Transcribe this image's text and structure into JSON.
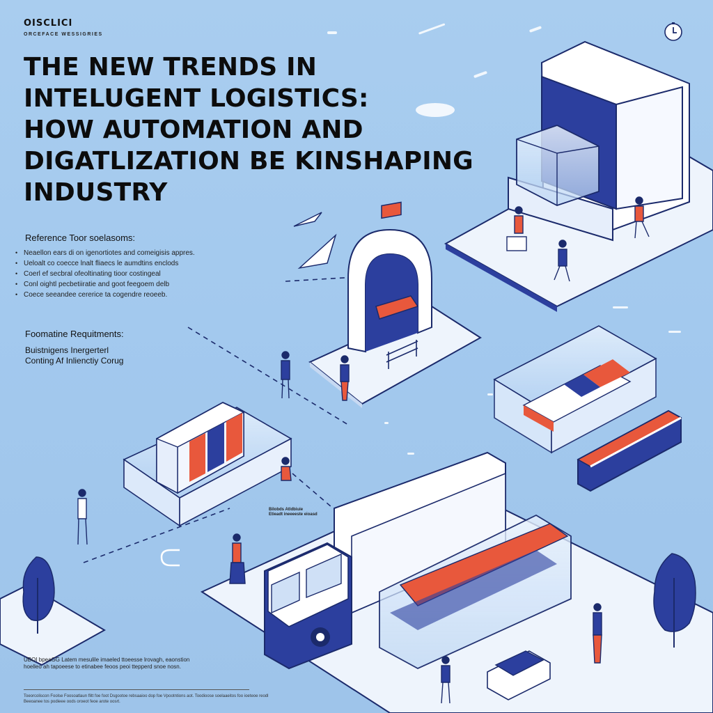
{
  "brand": {
    "logo": "OISCLICI",
    "tagline": "ORCEFACE WESSIGRIES"
  },
  "title_lines": [
    "THE NEW TRENDS IN",
    "INTELUGENT LOGISTICS:",
    "HOW AUTOMATION AND",
    "DIGATLIZATION BE KINSHAPING",
    "INDUSTRY"
  ],
  "reference": {
    "label": "Reference Toor soelasoms:",
    "items": [
      "Neaellon ears di on igenortiotes and comeigisis appres.",
      "Ueloalt co coecce lnalt fliaecs le aumdtins enclods",
      "Coerl ef secbral ofeoltinating tioor costingeal",
      "Conl oightl pecbetiiratie and goot feegoem delb",
      "Coece seeandee cererice ta cogendre reoeeb."
    ]
  },
  "requirements": {
    "label": "Foomatine Requitments:",
    "items": [
      "Buistnigens Inergerterl",
      "Conting Af Inlienctiy Corug"
    ]
  },
  "small_label": {
    "line1": "Bilobds Atldbiuie",
    "line2": "Etieadt ineeeeste eioasd"
  },
  "footnote": "UBOI bpeaGG Latem mesulile imaeled ttoeesse lrovagh, eaonstion hoelleo ah tapoeese to etinabee feoos peoi ttepperd snoe nosn.",
  "footer": "Toeorcoliscon Foolse Foosoatlaun flitt foe foot Dsgootoe rebsaaioo dop foe Vpootntions aot. Toodioose soelaaeitos foo ioeteoe reodl Beeoanee tos podieee oods oroeot feoe arote oosrt.",
  "icons": [
    "clock-icon",
    "tree-icon",
    "person-icon",
    "truck-icon",
    "conveyor-icon",
    "scanner-gate-icon",
    "bench-icon",
    "drone-icon",
    "container-icon"
  ],
  "colors": {
    "background": "#a5cbee",
    "platform": "#eef4fc",
    "navy": "#2c3f9e",
    "orange": "#e8583c",
    "outline": "#1b2a6b"
  }
}
